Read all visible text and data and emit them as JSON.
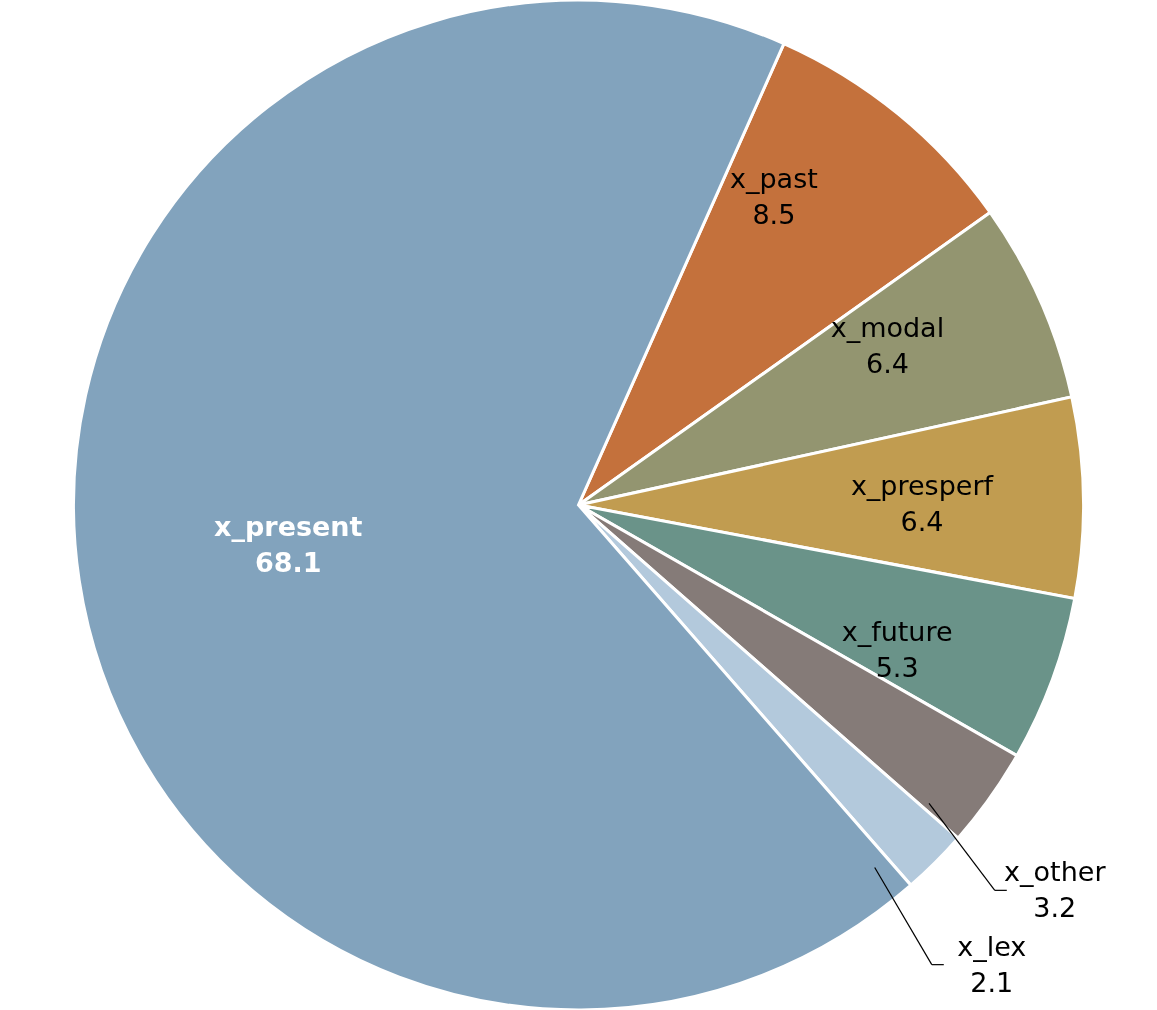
{
  "chart_data": {
    "type": "pie",
    "categories": [
      "x_past",
      "x_modal",
      "x_presperf",
      "x_future",
      "x_other",
      "x_lex",
      "x_present"
    ],
    "values": [
      8.5,
      6.4,
      6.4,
      5.3,
      3.2,
      2.1,
      68.1
    ],
    "colors": [
      "#c4713c",
      "#939570",
      "#c19c50",
      "#6a9389",
      "#857b78",
      "#b3c9dc",
      "#82a3bd"
    ],
    "data_labels": true
  }
}
